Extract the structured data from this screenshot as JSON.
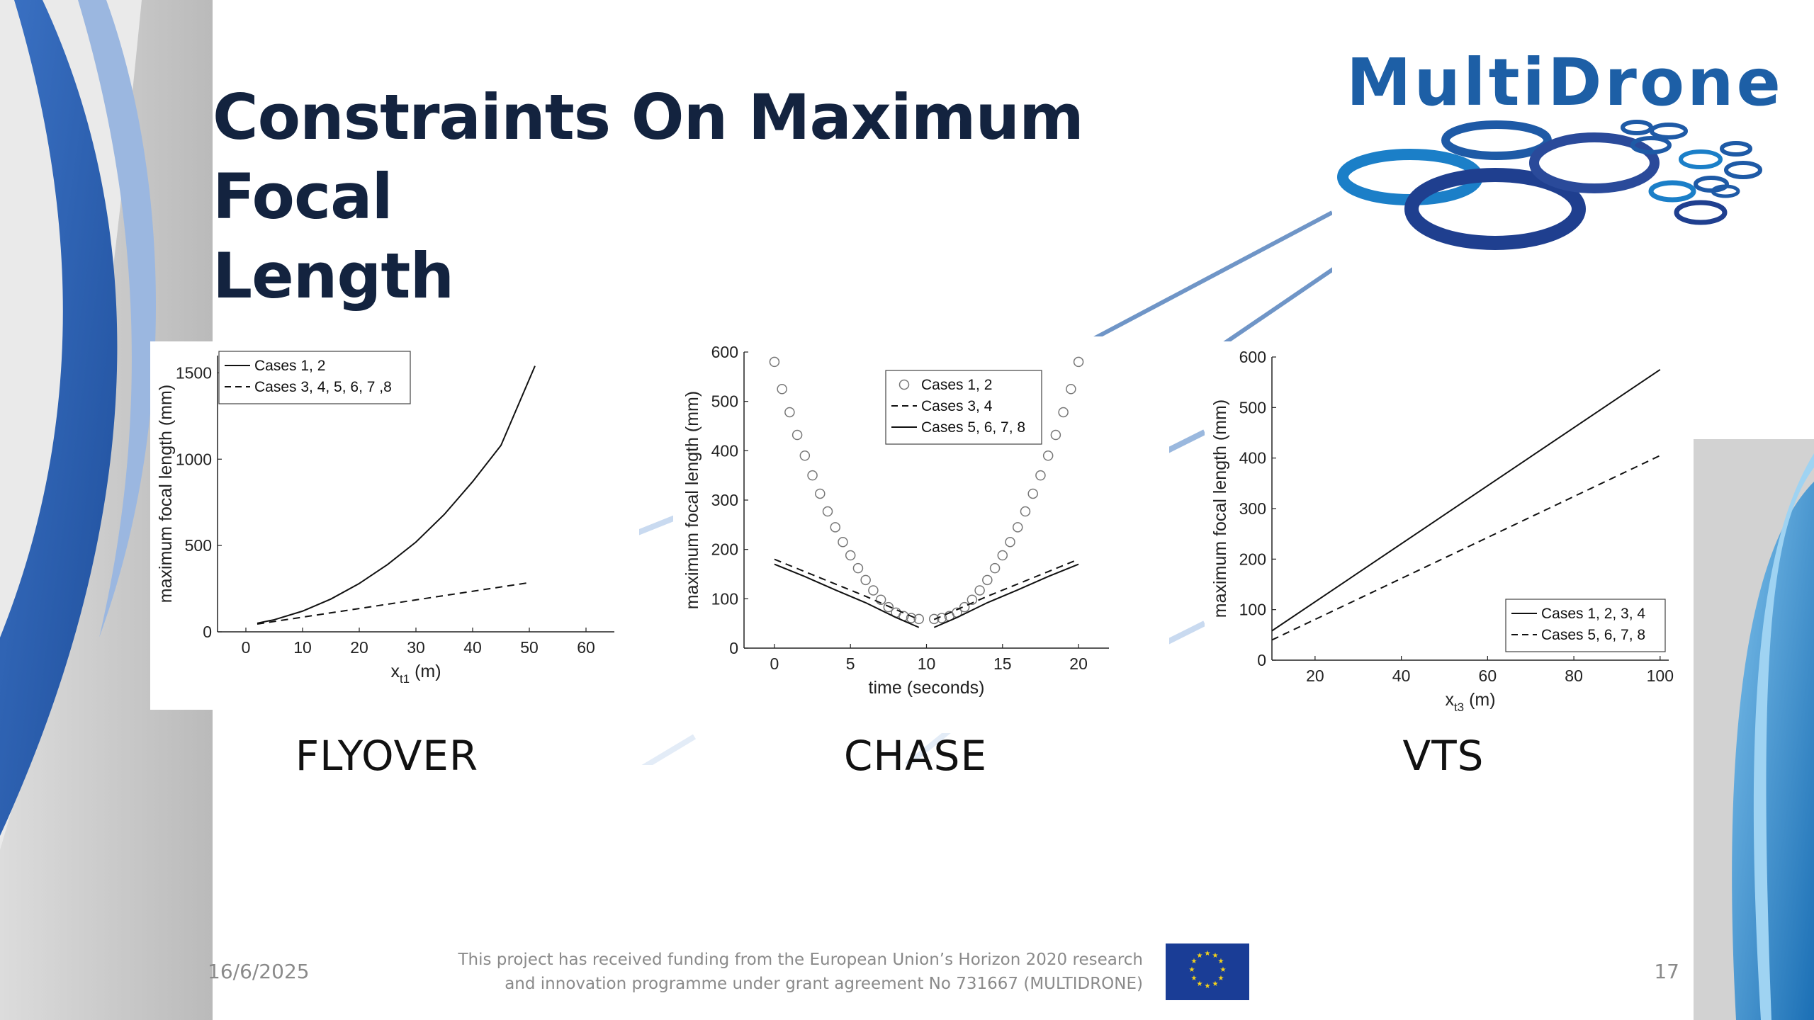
{
  "slide": {
    "title_line1": "Constraints On Maximum Focal",
    "title_line2": "Length",
    "logo_text": "MultiDrone",
    "date": "16/6/2025",
    "funding_line1": "This project has received funding from the European Union’s Horizon 2020 research",
    "funding_line2": "and innovation programme under grant agreement No 731667 (MULTIDRONE)",
    "page_number": "17",
    "captions": [
      "FLYOVER",
      "CHASE",
      "VTS"
    ]
  },
  "colors": {
    "title": "#13233f",
    "brand_blue": "#1d5fa6",
    "footer_gray": "#8a8a8a"
  },
  "icons": [
    "multidrone-logo-rings-icon",
    "eu-flag-icon"
  ],
  "chart_data": [
    {
      "type": "line",
      "xlabel": "x",
      "xlabel_sub": "t1",
      "xlabel_unit": " (m)",
      "ylabel": "maximum focal length (mm)",
      "xlim": [
        -5,
        65
      ],
      "ylim": [
        0,
        1600
      ],
      "xticks": [
        0,
        10,
        20,
        30,
        40,
        50,
        60
      ],
      "yticks": [
        0,
        500,
        1000,
        1500
      ],
      "legend_position": "top-left",
      "series": [
        {
          "name": "Cases 1, 2",
          "style": "solid",
          "x": [
            2,
            5,
            10,
            15,
            20,
            25,
            30,
            35,
            40,
            45,
            51
          ],
          "y": [
            50,
            70,
            120,
            190,
            280,
            390,
            520,
            680,
            870,
            1080,
            1540
          ]
        },
        {
          "name": "Cases 3, 4, 5, 6, 7 ,8",
          "style": "dashed",
          "x": [
            2,
            10,
            20,
            30,
            40,
            50
          ],
          "y": [
            45,
            85,
            135,
            185,
            235,
            285
          ]
        }
      ]
    },
    {
      "type": "line",
      "xlabel": "time (seconds)",
      "ylabel": "maximum focal length (mm)",
      "xlim": [
        -2,
        22
      ],
      "ylim": [
        0,
        600
      ],
      "xticks": [
        0,
        5,
        10,
        15,
        20
      ],
      "yticks": [
        0,
        100,
        200,
        300,
        400,
        500,
        600
      ],
      "legend_position": "top-center",
      "series": [
        {
          "name": "Cases 1, 2",
          "style": "circles",
          "x": [
            0,
            0.5,
            1,
            1.5,
            2,
            2.5,
            3,
            3.5,
            4,
            4.5,
            5,
            5.5,
            6,
            6.5,
            7,
            7.5,
            8,
            8.5,
            9,
            9.5,
            10.5,
            11,
            11.5,
            12,
            12.5,
            13,
            13.5,
            14,
            14.5,
            15,
            15.5,
            16,
            16.5,
            17,
            17.5,
            18,
            18.5,
            19,
            19.5,
            20
          ],
          "y": [
            580,
            525,
            478,
            432,
            390,
            350,
            313,
            277,
            245,
            215,
            188,
            162,
            138,
            117,
            98,
            83,
            72,
            65,
            61,
            59,
            59,
            61,
            65,
            72,
            83,
            98,
            117,
            138,
            162,
            188,
            215,
            245,
            277,
            313,
            350,
            390,
            432,
            478,
            525,
            580
          ]
        },
        {
          "name": "Cases 3, 4",
          "style": "dashed",
          "x": [
            0,
            2,
            4,
            6,
            8,
            9.5,
            10.5,
            12,
            14,
            16,
            18,
            20
          ],
          "y": [
            180,
            155,
            130,
            105,
            78,
            58,
            58,
            78,
            105,
            130,
            155,
            180
          ]
        },
        {
          "name": "Cases 5, 6, 7, 8",
          "style": "solid",
          "x": [
            0,
            2,
            4,
            6,
            8,
            9.5,
            10.5,
            12,
            14,
            16,
            18,
            20
          ],
          "y": [
            170,
            145,
            118,
            92,
            62,
            42,
            42,
            62,
            92,
            118,
            145,
            170
          ]
        }
      ]
    },
    {
      "type": "line",
      "xlabel": "x",
      "xlabel_sub": "t3",
      "xlabel_unit": " (m)",
      "ylabel": "maximum focal length (mm)",
      "xlim": [
        10,
        102
      ],
      "ylim": [
        0,
        600
      ],
      "xticks": [
        20,
        40,
        60,
        80,
        100
      ],
      "yticks": [
        0,
        100,
        200,
        300,
        400,
        500,
        600
      ],
      "legend_position": "bottom-right",
      "series": [
        {
          "name": "Cases 1, 2, 3, 4",
          "style": "solid",
          "x": [
            10,
            100
          ],
          "y": [
            58,
            575
          ]
        },
        {
          "name": "Cases 5, 6, 7, 8",
          "style": "dashed",
          "x": [
            10,
            100
          ],
          "y": [
            40,
            405
          ]
        }
      ]
    }
  ]
}
